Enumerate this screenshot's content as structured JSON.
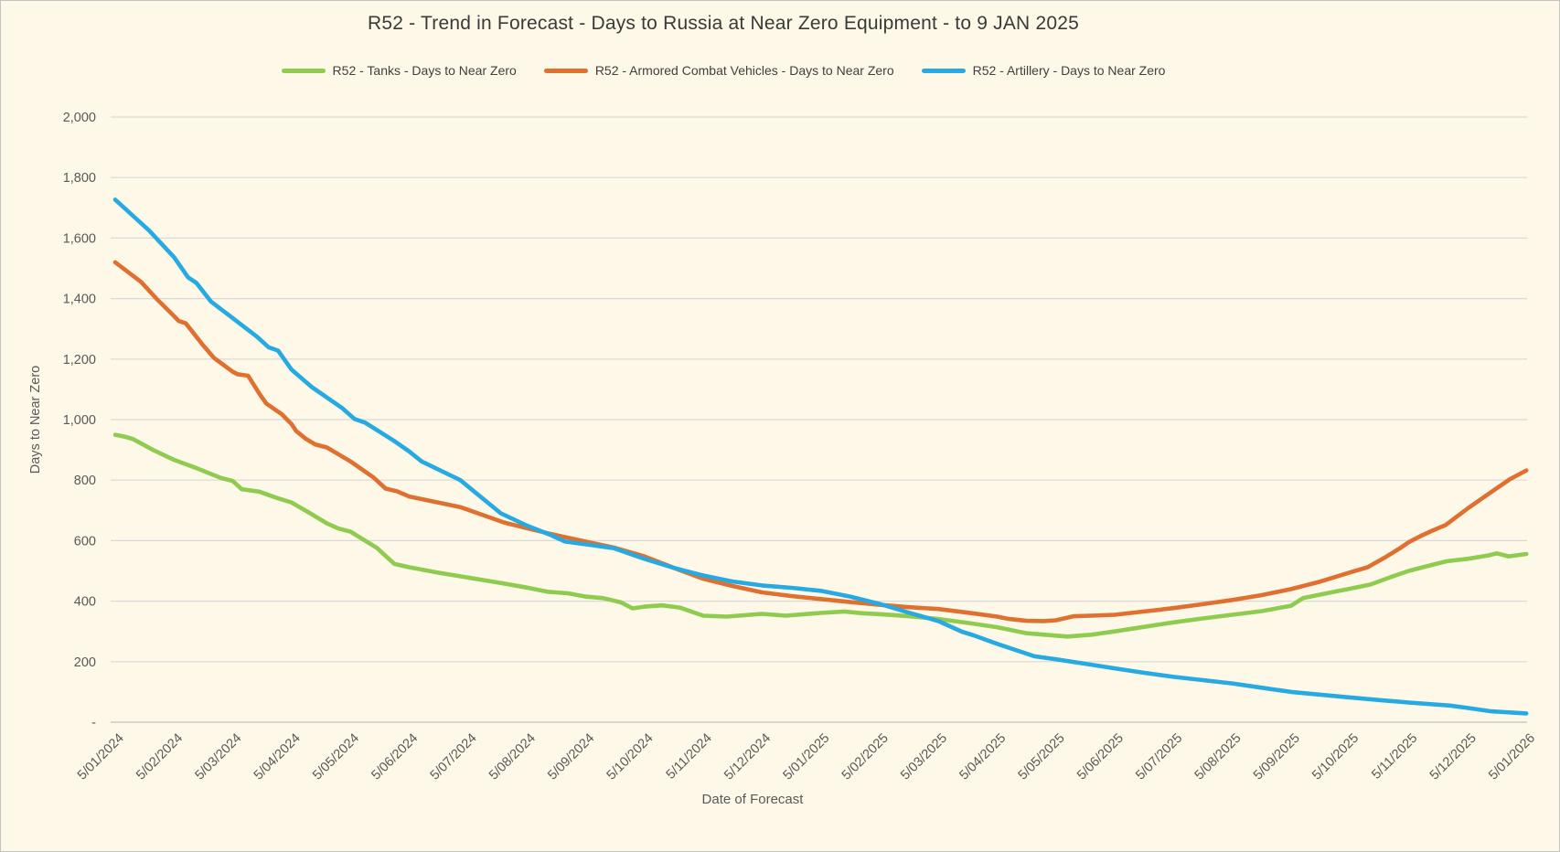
{
  "window": {
    "background_color": "#FDF8E7",
    "border_color": "#C3C3C3",
    "gridline_color": "#D9D9D9",
    "axisline_color": "#C9C9C9",
    "title_color": "#3A3A3A",
    "axis_text_color": "#595959"
  },
  "chart_data": {
    "type": "line",
    "title": "R52 - Trend in Forecast - Days to Russia at Near Zero Equipment - to 9 JAN 2025",
    "xlabel": "Date of Forecast",
    "ylabel": "Days to Near Zero",
    "ylim": [
      0,
      2000
    ],
    "ytick_step": 200,
    "ytick_labels": [
      "-",
      "200",
      "400",
      "600",
      "800",
      "1,000",
      "1,200",
      "1,400",
      "1,600",
      "1,800",
      "2,000"
    ],
    "x_ticks": [
      "5/01/2024",
      "5/02/2024",
      "5/03/2024",
      "5/04/2024",
      "5/05/2024",
      "5/06/2024",
      "5/07/2024",
      "5/08/2024",
      "5/09/2024",
      "5/10/2024",
      "5/11/2024",
      "5/12/2024",
      "5/01/2025",
      "5/02/2025",
      "5/03/2025",
      "5/04/2025",
      "5/05/2025",
      "5/06/2025",
      "5/07/2025",
      "5/08/2025",
      "5/09/2025",
      "5/10/2025",
      "5/11/2025",
      "5/12/2025",
      "5/01/2026"
    ],
    "grid": "horizontal",
    "legend_position": "top",
    "x_unit": "month-index from 5/01/2024 tick (0-24)",
    "series": [
      {
        "name": "R52 - Tanks - Days to Near Zero",
        "color": "#8FCB4E",
        "monthly_values": [
          950,
          867,
          797,
          726,
          630,
          512,
          478,
          445,
          415,
          385,
          352,
          358,
          362,
          357,
          341,
          314,
          286,
          300,
          330,
          355,
          385,
          441,
          500,
          540,
          556
        ],
        "points": [
          [
            0,
            950
          ],
          [
            0.15,
            944
          ],
          [
            0.3,
            936
          ],
          [
            0.67,
            897
          ],
          [
            1,
            867
          ],
          [
            1.35,
            842
          ],
          [
            1.8,
            807
          ],
          [
            2,
            797
          ],
          [
            2.15,
            770
          ],
          [
            2.45,
            762
          ],
          [
            2.75,
            741
          ],
          [
            3,
            726
          ],
          [
            3.3,
            692
          ],
          [
            3.6,
            657
          ],
          [
            3.8,
            640
          ],
          [
            4,
            630
          ],
          [
            4.45,
            576
          ],
          [
            4.75,
            523
          ],
          [
            5,
            512
          ],
          [
            5.5,
            494
          ],
          [
            6,
            478
          ],
          [
            6.5,
            462
          ],
          [
            7,
            445
          ],
          [
            7.35,
            431
          ],
          [
            7.7,
            426
          ],
          [
            8,
            415
          ],
          [
            8.3,
            410
          ],
          [
            8.6,
            396
          ],
          [
            8.8,
            376
          ],
          [
            9,
            382
          ],
          [
            9.3,
            386
          ],
          [
            9.6,
            379
          ],
          [
            10,
            352
          ],
          [
            10.4,
            349
          ],
          [
            11,
            358
          ],
          [
            11.4,
            352
          ],
          [
            12,
            361
          ],
          [
            12.4,
            366
          ],
          [
            12.7,
            360
          ],
          [
            13,
            357
          ],
          [
            13.5,
            350
          ],
          [
            14,
            341
          ],
          [
            14.5,
            328
          ],
          [
            15,
            314
          ],
          [
            15.5,
            294
          ],
          [
            16,
            286
          ],
          [
            16.2,
            283
          ],
          [
            16.6,
            289
          ],
          [
            17,
            300
          ],
          [
            17.5,
            315
          ],
          [
            18,
            330
          ],
          [
            18.5,
            343
          ],
          [
            19,
            355
          ],
          [
            19.5,
            367
          ],
          [
            20,
            385
          ],
          [
            20.2,
            410
          ],
          [
            20.7,
            430
          ],
          [
            21,
            441
          ],
          [
            21.35,
            455
          ],
          [
            21.7,
            480
          ],
          [
            22,
            500
          ],
          [
            22.4,
            520
          ],
          [
            22.65,
            532
          ],
          [
            23,
            540
          ],
          [
            23.35,
            551
          ],
          [
            23.5,
            558
          ],
          [
            23.7,
            548
          ],
          [
            24,
            556
          ]
        ]
      },
      {
        "name": "R52 - Armored Combat Vehicles - Days to Near Zero",
        "color": "#E0702F",
        "monthly_values": [
          1520,
          1342,
          1158,
          985,
          862,
          746,
          641,
          597,
          548,
          474,
          429,
          407,
          388,
          374,
          349,
          337,
          355,
          377,
          404,
          440,
          495,
          595,
          706,
          760,
          832
        ],
        "points": [
          [
            0,
            1520
          ],
          [
            0.44,
            1455
          ],
          [
            0.7,
            1400
          ],
          [
            1,
            1342
          ],
          [
            1.08,
            1326
          ],
          [
            1.2,
            1318
          ],
          [
            1.48,
            1249
          ],
          [
            1.68,
            1204
          ],
          [
            2,
            1158
          ],
          [
            2.08,
            1150
          ],
          [
            2.26,
            1145
          ],
          [
            2.46,
            1083
          ],
          [
            2.57,
            1053
          ],
          [
            2.83,
            1018
          ],
          [
            3,
            985
          ],
          [
            3.08,
            962
          ],
          [
            3.24,
            937
          ],
          [
            3.4,
            918
          ],
          [
            3.6,
            908
          ],
          [
            4,
            862
          ],
          [
            4.38,
            811
          ],
          [
            4.6,
            772
          ],
          [
            4.79,
            763
          ],
          [
            5,
            746
          ],
          [
            5.87,
            711
          ],
          [
            6.61,
            660
          ],
          [
            7,
            641
          ],
          [
            7.39,
            623
          ],
          [
            8,
            597
          ],
          [
            8.48,
            577
          ],
          [
            9,
            548
          ],
          [
            9.5,
            510
          ],
          [
            10,
            474
          ],
          [
            10.5,
            450
          ],
          [
            11,
            429
          ],
          [
            11.5,
            417
          ],
          [
            12,
            407
          ],
          [
            12.5,
            397
          ],
          [
            13,
            388
          ],
          [
            13.5,
            380
          ],
          [
            14,
            374
          ],
          [
            14.5,
            362
          ],
          [
            15,
            349
          ],
          [
            15.2,
            341
          ],
          [
            15.5,
            335
          ],
          [
            15.8,
            334
          ],
          [
            16,
            337
          ],
          [
            16.3,
            350
          ],
          [
            16.6,
            352
          ],
          [
            17,
            355
          ],
          [
            17.5,
            366
          ],
          [
            18,
            377
          ],
          [
            18.5,
            390
          ],
          [
            19,
            404
          ],
          [
            19.5,
            420
          ],
          [
            20,
            440
          ],
          [
            20.5,
            465
          ],
          [
            21,
            495
          ],
          [
            21.3,
            512
          ],
          [
            21.6,
            545
          ],
          [
            21.85,
            575
          ],
          [
            22,
            595
          ],
          [
            22.2,
            615
          ],
          [
            22.4,
            633
          ],
          [
            22.63,
            652
          ],
          [
            23,
            706
          ],
          [
            23.4,
            760
          ],
          [
            23.72,
            803
          ],
          [
            24,
            832
          ]
        ]
      },
      {
        "name": "R52 - Artillery - Days to Near Zero",
        "color": "#27AAE1",
        "monthly_values": [
          1727,
          1537,
          1335,
          1165,
          1010,
          895,
          785,
          650,
          588,
          540,
          485,
          452,
          434,
          391,
          334,
          259,
          208,
          178,
          150,
          128,
          100,
          82,
          65,
          47,
          29
        ],
        "points": [
          [
            0,
            1727
          ],
          [
            0.57,
            1626
          ],
          [
            1,
            1537
          ],
          [
            1.24,
            1470
          ],
          [
            1.38,
            1452
          ],
          [
            1.63,
            1390
          ],
          [
            2,
            1335
          ],
          [
            2.41,
            1274
          ],
          [
            2.61,
            1239
          ],
          [
            2.77,
            1228
          ],
          [
            3,
            1165
          ],
          [
            3.34,
            1108
          ],
          [
            3.86,
            1038
          ],
          [
            4.07,
            1002
          ],
          [
            4.25,
            990
          ],
          [
            4.74,
            930
          ],
          [
            5,
            895
          ],
          [
            5.21,
            862
          ],
          [
            5.87,
            800
          ],
          [
            6.56,
            690
          ],
          [
            7,
            650
          ],
          [
            7.39,
            620
          ],
          [
            7.65,
            597
          ],
          [
            8,
            588
          ],
          [
            8.48,
            575
          ],
          [
            9,
            540
          ],
          [
            9.5,
            510
          ],
          [
            10,
            485
          ],
          [
            10.5,
            465
          ],
          [
            11,
            452
          ],
          [
            11.5,
            444
          ],
          [
            12,
            434
          ],
          [
            12.5,
            415
          ],
          [
            13,
            391
          ],
          [
            13.5,
            362
          ],
          [
            14,
            334
          ],
          [
            14.4,
            299
          ],
          [
            14.6,
            287
          ],
          [
            15,
            259
          ],
          [
            15.63,
            218
          ],
          [
            16,
            208
          ],
          [
            16.5,
            193
          ],
          [
            17,
            178
          ],
          [
            17.5,
            163
          ],
          [
            18,
            150
          ],
          [
            18.5,
            139
          ],
          [
            19,
            128
          ],
          [
            19.5,
            114
          ],
          [
            20,
            100
          ],
          [
            20.5,
            91
          ],
          [
            21,
            82
          ],
          [
            21.5,
            73
          ],
          [
            22,
            65
          ],
          [
            22.7,
            55
          ],
          [
            23,
            47
          ],
          [
            23.4,
            36
          ],
          [
            24,
            29
          ]
        ]
      }
    ]
  }
}
